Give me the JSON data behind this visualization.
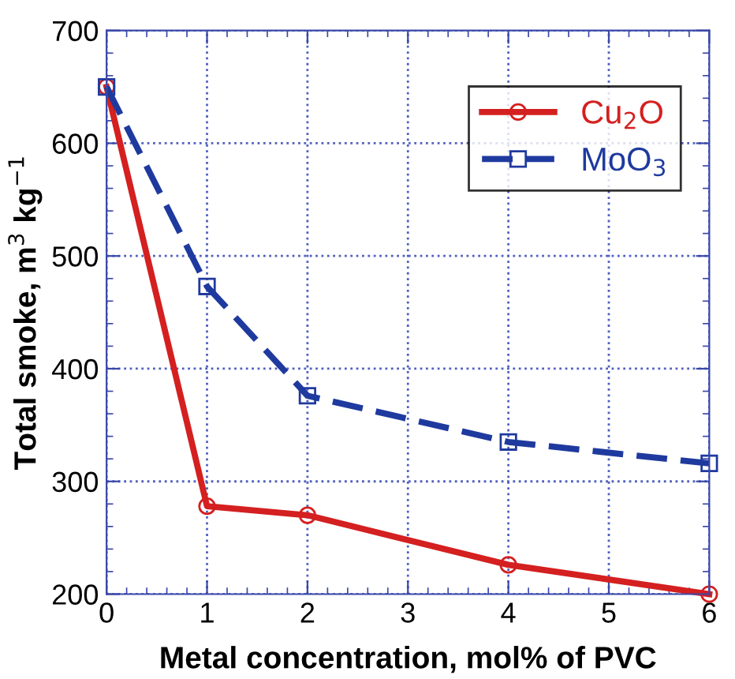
{
  "chart_data": {
    "type": "line",
    "xlabel": "Metal concentration, mol% of PVC",
    "ylabel": "Total smoke, m$^{3}$ kg$^{−1}$",
    "x": [
      0,
      1,
      2,
      4,
      6
    ],
    "series": [
      {
        "name": "Cu$_{2}$O",
        "color": "#d42020",
        "values": [
          650,
          278,
          270,
          226,
          200
        ],
        "marker": "circle",
        "line_style": "solid"
      },
      {
        "name": "MoO$_{3}$",
        "color": "#1f3a9e",
        "values": [
          650,
          473,
          376,
          335,
          316
        ],
        "marker": "square",
        "line_style": "dashed"
      }
    ],
    "xlim": [
      0,
      6
    ],
    "xticks": [
      0,
      1,
      2,
      3,
      4,
      5,
      6
    ],
    "ylim": [
      200,
      700
    ],
    "yticks": [
      200,
      300,
      400,
      500,
      600,
      700
    ],
    "grid": true,
    "legend": "top right"
  }
}
